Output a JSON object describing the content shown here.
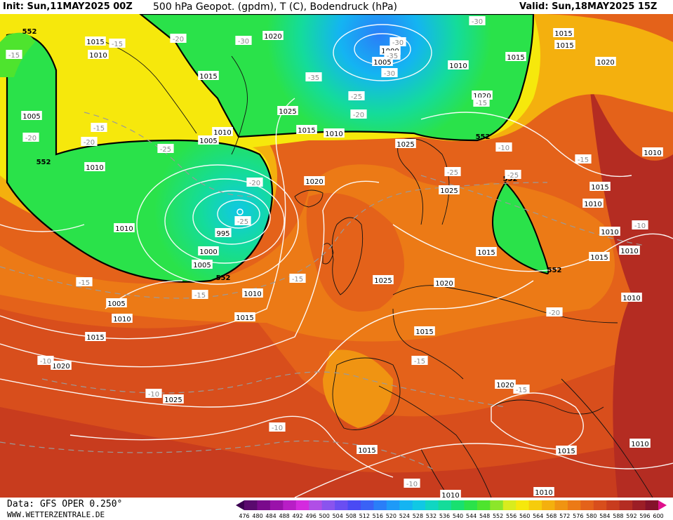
{
  "header": {
    "init": "Init: Sun,11MAY2025 00Z",
    "title": "500 hPa Geopot. (gpdm), T (C), Bodendruck (hPa)",
    "valid": "Valid: Sun,18MAY2025 15Z"
  },
  "footer": {
    "source": "Data: GFS OPER 0.250°",
    "website": "WWW.WETTERZENTRALE.DE"
  },
  "colorbar": {
    "ticks": [
      "476",
      "480",
      "484",
      "488",
      "492",
      "496",
      "500",
      "504",
      "508",
      "512",
      "516",
      "520",
      "524",
      "528",
      "532",
      "536",
      "540",
      "544",
      "548",
      "552",
      "556",
      "560",
      "564",
      "568",
      "572",
      "576",
      "580",
      "584",
      "588",
      "592",
      "596",
      "600"
    ],
    "colors": [
      "#5a0a6e",
      "#7a0a8c",
      "#9a12aa",
      "#b81ec6",
      "#d42ade",
      "#b04ee6",
      "#8a54ee",
      "#6a4ef2",
      "#4a4af4",
      "#3a62f6",
      "#2a7ef8",
      "#1e9af8",
      "#14b4f2",
      "#10c8e4",
      "#10d6c2",
      "#14dc9a",
      "#18e070",
      "#2ae24a",
      "#4ee42e",
      "#8ce62a",
      "#d8ec1e",
      "#f6e80c",
      "#f6cc0c",
      "#f4b00e",
      "#f09412",
      "#ec7a16",
      "#e4621a",
      "#d84e1c",
      "#c83c1e",
      "#b42c22",
      "#9c1e26",
      "#84122a"
    ],
    "start_color": "#3a0050",
    "end_color": "#e0108c"
  },
  "isobars": [
    {
      "text": "1015"
    },
    {
      "text": "1010"
    },
    {
      "text": "1020"
    },
    {
      "text": "1000"
    },
    {
      "text": "1005"
    },
    {
      "text": "1010"
    },
    {
      "text": "1015"
    },
    {
      "text": "1020"
    },
    {
      "text": "1015"
    },
    {
      "text": "1020"
    },
    {
      "text": "1005"
    },
    {
      "text": "1015"
    },
    {
      "text": "1025"
    },
    {
      "text": "1010"
    },
    {
      "text": "1015"
    },
    {
      "text": "1010"
    },
    {
      "text": "1005"
    },
    {
      "text": "1010"
    },
    {
      "text": "1020"
    },
    {
      "text": "1010"
    },
    {
      "text": "995"
    },
    {
      "text": "1000"
    },
    {
      "text": "1005"
    },
    {
      "text": "1025"
    },
    {
      "text": "1025"
    },
    {
      "text": "1015"
    },
    {
      "text": "1010"
    },
    {
      "text": "1015"
    },
    {
      "text": "1010"
    },
    {
      "text": "1010"
    },
    {
      "text": "1020"
    },
    {
      "text": "1015"
    },
    {
      "text": "1005"
    },
    {
      "text": "1010"
    },
    {
      "text": "1015"
    },
    {
      "text": "1010"
    },
    {
      "text": "1015"
    },
    {
      "text": "1020"
    },
    {
      "text": "1025"
    },
    {
      "text": "1025"
    },
    {
      "text": "1020"
    },
    {
      "text": "1015"
    },
    {
      "text": "1015"
    },
    {
      "text": "1010"
    },
    {
      "text": "1010"
    },
    {
      "text": "1010"
    },
    {
      "text": "1010"
    },
    {
      "text": "1015"
    },
    {
      "text": "1010"
    },
    {
      "text": "1015"
    }
  ],
  "temperatures": [
    {
      "text": "-30"
    },
    {
      "text": "-30"
    },
    {
      "text": "-35"
    },
    {
      "text": "-30"
    },
    {
      "text": "-35"
    },
    {
      "text": "-25"
    },
    {
      "text": "-20"
    },
    {
      "text": "-30"
    },
    {
      "text": "-20"
    },
    {
      "text": "-15"
    },
    {
      "text": "-15"
    },
    {
      "text": "-20"
    },
    {
      "text": "-20"
    },
    {
      "text": "-25"
    },
    {
      "text": "-25"
    },
    {
      "text": "-20"
    },
    {
      "text": "-25"
    },
    {
      "text": "-25"
    },
    {
      "text": "-15"
    },
    {
      "text": "-15"
    },
    {
      "text": "-15"
    },
    {
      "text": "-15"
    },
    {
      "text": "-10"
    },
    {
      "text": "-15"
    },
    {
      "text": "-20"
    },
    {
      "text": "-15"
    },
    {
      "text": "-10"
    },
    {
      "text": "-10"
    },
    {
      "text": "-10"
    },
    {
      "text": "-15"
    },
    {
      "text": "-10"
    },
    {
      "text": "-10"
    },
    {
      "text": "-15"
    }
  ],
  "contours552": [
    {
      "text": "552"
    },
    {
      "text": "552"
    },
    {
      "text": "552"
    },
    {
      "text": "552"
    },
    {
      "text": "552"
    },
    {
      "text": "552"
    }
  ]
}
